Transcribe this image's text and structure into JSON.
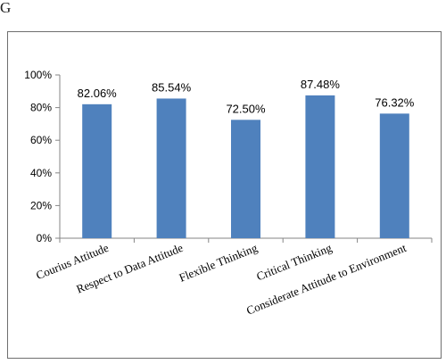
{
  "page_fragment": "G",
  "colors": {
    "bar": "#4f81bd",
    "axis": "#868686",
    "frame": "#6f6f6f"
  },
  "chart_data": {
    "type": "bar",
    "categories": [
      "Courius Attitude",
      "Respect to Data Attitude",
      "Flexible Thinking",
      "Critical Thinking",
      "Considerate Attitude to Environment"
    ],
    "values": [
      82.06,
      85.54,
      72.5,
      87.48,
      76.32
    ],
    "data_labels": [
      "82.06%",
      "85.54%",
      "72.50%",
      "87.48%",
      "76.32%"
    ],
    "y_ticks": [
      "0%",
      "20%",
      "40%",
      "60%",
      "80%",
      "100%"
    ],
    "ylim": [
      0,
      100
    ],
    "grid": false,
    "legend": "none"
  }
}
